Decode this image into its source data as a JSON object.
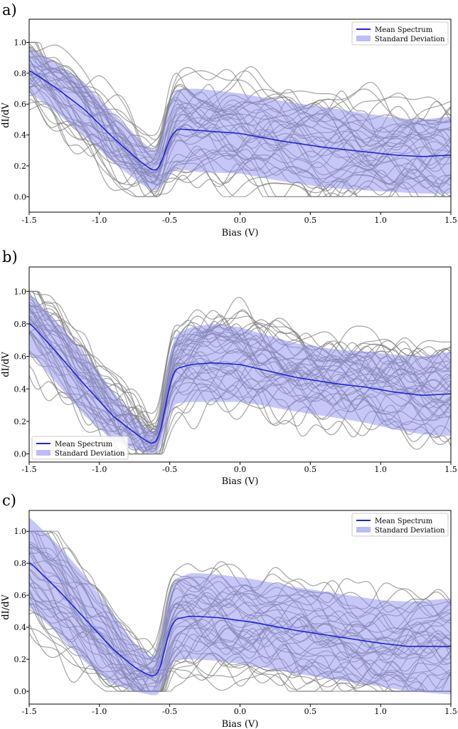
{
  "chart_data": [
    {
      "panel": "a)",
      "type": "line",
      "xlabel": "Bias (V)",
      "ylabel": "dI/dV",
      "xlim": [
        -1.5,
        1.5
      ],
      "ylim": [
        -0.1,
        1.15
      ],
      "xticks": [
        -1.5,
        -1.0,
        -0.5,
        0.0,
        0.5,
        1.0,
        1.5
      ],
      "xtick_labels": [
        "-1.5",
        "-1.0",
        "-0.5",
        "0.0",
        "0.5",
        "1.0",
        "1.5"
      ],
      "yticks": [
        0.0,
        0.2,
        0.4,
        0.6,
        0.8,
        1.0
      ],
      "ytick_labels": [
        "0.0",
        "0.2",
        "0.4",
        "0.6",
        "0.8",
        "1.0"
      ],
      "legend": {
        "placement": "top-right",
        "entries": [
          "Mean Spectrum",
          "Standard Deviation"
        ]
      },
      "colors": {
        "mean": "#1f22e0",
        "std_fill": "#8f8ff0",
        "individual": "#7d7d7d"
      },
      "individual_spectra_count": 40,
      "mean": {
        "x": [
          -1.5,
          -1.3,
          -1.1,
          -0.9,
          -0.7,
          -0.62,
          -0.58,
          -0.55,
          -0.5,
          -0.45,
          -0.3,
          0.0,
          0.3,
          0.6,
          0.9,
          1.1,
          1.3,
          1.5
        ],
        "y": [
          0.82,
          0.7,
          0.56,
          0.38,
          0.22,
          0.17,
          0.17,
          0.25,
          0.38,
          0.44,
          0.43,
          0.41,
          0.36,
          0.32,
          0.29,
          0.27,
          0.26,
          0.27
        ]
      },
      "std": [
        0.14,
        0.16,
        0.17,
        0.16,
        0.14,
        0.13,
        0.13,
        0.17,
        0.24,
        0.26,
        0.27,
        0.26,
        0.26,
        0.26,
        0.25,
        0.24,
        0.24,
        0.25
      ]
    },
    {
      "panel": "b)",
      "type": "line",
      "xlabel": "Bias (V)",
      "ylabel": "dI/dV",
      "xlim": [
        -1.5,
        1.5
      ],
      "ylim": [
        -0.05,
        1.15
      ],
      "xticks": [
        -1.5,
        -1.0,
        -0.5,
        0.0,
        0.5,
        1.0,
        1.5
      ],
      "xtick_labels": [
        "-1.5",
        "-1.0",
        "-0.5",
        "0.0",
        "0.5",
        "1.0",
        "1.5"
      ],
      "yticks": [
        0.0,
        0.2,
        0.4,
        0.6,
        0.8,
        1.0
      ],
      "ytick_labels": [
        "0.0",
        "0.2",
        "0.4",
        "0.6",
        "0.8",
        "1.0"
      ],
      "legend": {
        "placement": "bottom-left",
        "entries": [
          "Mean Spectrum",
          "Standard Deviation"
        ]
      },
      "colors": {
        "mean": "#1f22e0",
        "std_fill": "#8f8ff0",
        "individual": "#7d7d7d"
      },
      "individual_spectra_count": 40,
      "mean": {
        "x": [
          -1.5,
          -1.3,
          -1.1,
          -0.9,
          -0.75,
          -0.65,
          -0.6,
          -0.56,
          -0.52,
          -0.47,
          -0.35,
          -0.2,
          0.0,
          0.15,
          0.4,
          0.7,
          0.9,
          1.1,
          1.3,
          1.5
        ],
        "y": [
          0.81,
          0.62,
          0.42,
          0.23,
          0.13,
          0.07,
          0.06,
          0.15,
          0.35,
          0.52,
          0.55,
          0.56,
          0.55,
          0.52,
          0.47,
          0.43,
          0.41,
          0.38,
          0.36,
          0.37
        ]
      },
      "std": [
        0.18,
        0.19,
        0.19,
        0.15,
        0.1,
        0.07,
        0.07,
        0.1,
        0.16,
        0.21,
        0.23,
        0.24,
        0.23,
        0.22,
        0.21,
        0.21,
        0.22,
        0.23,
        0.24,
        0.26
      ]
    },
    {
      "panel": "c)",
      "type": "line",
      "xlabel": "Bias (V)",
      "ylabel": "dI/dV",
      "xlim": [
        -1.5,
        1.5
      ],
      "ylim": [
        -0.08,
        1.13
      ],
      "xticks": [
        -1.5,
        -1.0,
        -0.5,
        0.0,
        0.5,
        1.0,
        1.5
      ],
      "xtick_labels": [
        "-1.5",
        "-1.0",
        "-0.5",
        "0.0",
        "0.5",
        "1.0",
        "1.5"
      ],
      "yticks": [
        0.0,
        0.2,
        0.4,
        0.6,
        0.8,
        1.0
      ],
      "ytick_labels": [
        "0.0",
        "0.2",
        "0.4",
        "0.6",
        "0.8",
        "1.0"
      ],
      "legend": {
        "placement": "top-right",
        "entries": [
          "Mean Spectrum",
          "Standard Deviation"
        ]
      },
      "colors": {
        "mean": "#1f22e0",
        "std_fill": "#8f8ff0",
        "individual": "#7d7d7d"
      },
      "individual_spectra_count": 40,
      "mean": {
        "x": [
          -1.5,
          -1.3,
          -1.1,
          -0.9,
          -0.75,
          -0.65,
          -0.6,
          -0.56,
          -0.52,
          -0.47,
          -0.35,
          -0.15,
          0.1,
          0.4,
          0.7,
          1.0,
          1.2,
          1.5
        ],
        "y": [
          0.81,
          0.64,
          0.45,
          0.26,
          0.15,
          0.1,
          0.09,
          0.16,
          0.33,
          0.45,
          0.47,
          0.46,
          0.43,
          0.38,
          0.34,
          0.3,
          0.28,
          0.28
        ]
      },
      "std": [
        0.28,
        0.28,
        0.27,
        0.22,
        0.15,
        0.12,
        0.12,
        0.16,
        0.22,
        0.25,
        0.27,
        0.27,
        0.27,
        0.27,
        0.27,
        0.27,
        0.28,
        0.3
      ]
    }
  ]
}
